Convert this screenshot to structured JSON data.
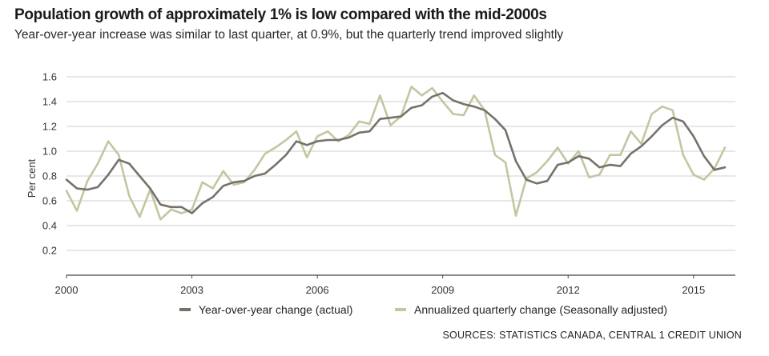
{
  "header": {
    "title": "Population growth of approximately 1% is low compared with the mid-2000s",
    "subtitle": "Year-over-year increase was similar to last quarter, at 0.9%, but the quarterly trend improved slightly"
  },
  "footer": {
    "sources": "SOURCES: STATISTICS CANADA, CENTRAL 1 CREDIT UNION"
  },
  "colors": {
    "yoy": "#77716a",
    "qtr": "#c3c6a0",
    "grid": "#cfcfcf",
    "axis": "#444444"
  },
  "chart_data": {
    "type": "line",
    "title": "Population growth of approximately 1% is low compared with the mid-2000s",
    "subtitle": "Year-over-year increase was similar to last quarter, at 0.9%, but the quarterly trend improved slightly",
    "ylabel": "Per cent",
    "xlabel": "",
    "ylim": [
      0,
      1.6
    ],
    "xlim": [
      2000,
      2016
    ],
    "yticks": [
      "0.2",
      "0.4",
      "0.6",
      "0.8",
      "1.0",
      "1.2",
      "1.4",
      "1.6"
    ],
    "xticks": [
      "2000",
      "2003",
      "2006",
      "2009",
      "2012",
      "2015"
    ],
    "grid": true,
    "legend_position": "bottom",
    "series": [
      {
        "name": "Year-over-year change (actual)",
        "x": [
          2000.0,
          2000.25,
          2000.5,
          2000.75,
          2001.0,
          2001.25,
          2001.5,
          2001.75,
          2002.0,
          2002.25,
          2002.5,
          2002.75,
          2003.0,
          2003.25,
          2003.5,
          2003.75,
          2004.0,
          2004.25,
          2004.5,
          2004.75,
          2005.0,
          2005.25,
          2005.5,
          2005.75,
          2006.0,
          2006.25,
          2006.5,
          2006.75,
          2007.0,
          2007.25,
          2007.5,
          2007.75,
          2008.0,
          2008.25,
          2008.5,
          2008.75,
          2009.0,
          2009.25,
          2009.5,
          2009.75,
          2010.0,
          2010.25,
          2010.5,
          2010.75,
          2011.0,
          2011.25,
          2011.5,
          2011.75,
          2012.0,
          2012.25,
          2012.5,
          2012.75,
          2013.0,
          2013.25,
          2013.5,
          2013.75,
          2014.0,
          2014.25,
          2014.5,
          2014.75,
          2015.0,
          2015.25,
          2015.5,
          2015.75
        ],
        "values": [
          0.77,
          0.7,
          0.69,
          0.71,
          0.81,
          0.93,
          0.9,
          0.8,
          0.7,
          0.57,
          0.55,
          0.55,
          0.5,
          0.58,
          0.63,
          0.72,
          0.75,
          0.76,
          0.8,
          0.82,
          0.89,
          0.97,
          1.08,
          1.05,
          1.08,
          1.09,
          1.09,
          1.11,
          1.15,
          1.16,
          1.26,
          1.27,
          1.28,
          1.35,
          1.37,
          1.44,
          1.47,
          1.41,
          1.38,
          1.36,
          1.33,
          1.26,
          1.17,
          0.92,
          0.77,
          0.74,
          0.76,
          0.89,
          0.91,
          0.96,
          0.94,
          0.87,
          0.89,
          0.88,
          0.98,
          1.04,
          1.12,
          1.21,
          1.27,
          1.24,
          1.12,
          0.96,
          0.85,
          0.87
        ]
      },
      {
        "name": "Annualized quarterly change (Seasonally adjusted)",
        "x": [
          2000.0,
          2000.25,
          2000.5,
          2000.75,
          2001.0,
          2001.25,
          2001.5,
          2001.75,
          2002.0,
          2002.25,
          2002.5,
          2002.75,
          2003.0,
          2003.25,
          2003.5,
          2003.75,
          2004.0,
          2004.25,
          2004.5,
          2004.75,
          2005.0,
          2005.25,
          2005.5,
          2005.75,
          2006.0,
          2006.25,
          2006.5,
          2006.75,
          2007.0,
          2007.25,
          2007.5,
          2007.75,
          2008.0,
          2008.25,
          2008.5,
          2008.75,
          2009.0,
          2009.25,
          2009.5,
          2009.75,
          2010.0,
          2010.25,
          2010.5,
          2010.75,
          2011.0,
          2011.25,
          2011.5,
          2011.75,
          2012.0,
          2012.25,
          2012.5,
          2012.75,
          2013.0,
          2013.25,
          2013.5,
          2013.75,
          2014.0,
          2014.25,
          2014.5,
          2014.75,
          2015.0,
          2015.25,
          2015.5,
          2015.75
        ],
        "values": [
          0.68,
          0.52,
          0.76,
          0.9,
          1.08,
          0.97,
          0.64,
          0.47,
          0.69,
          0.45,
          0.53,
          0.5,
          0.53,
          0.75,
          0.7,
          0.84,
          0.73,
          0.75,
          0.85,
          0.98,
          1.03,
          1.09,
          1.16,
          0.95,
          1.12,
          1.16,
          1.08,
          1.13,
          1.24,
          1.22,
          1.45,
          1.21,
          1.28,
          1.52,
          1.45,
          1.51,
          1.4,
          1.3,
          1.29,
          1.45,
          1.33,
          0.97,
          0.91,
          0.48,
          0.78,
          0.83,
          0.92,
          1.03,
          0.9,
          1.0,
          0.79,
          0.81,
          0.97,
          0.97,
          1.16,
          1.06,
          1.3,
          1.36,
          1.33,
          0.97,
          0.81,
          0.77,
          0.86,
          1.03
        ]
      }
    ]
  }
}
